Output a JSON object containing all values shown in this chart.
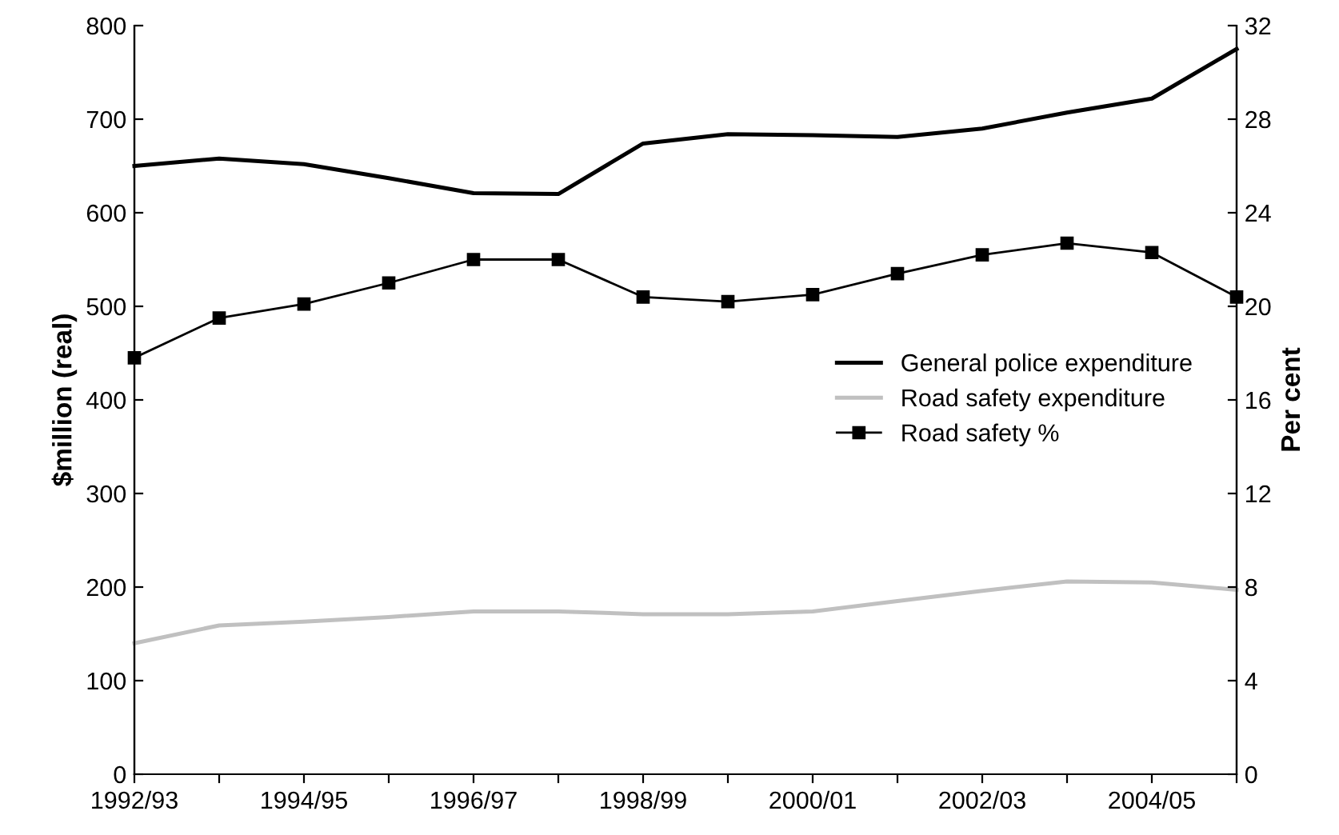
{
  "chart_data": {
    "type": "line",
    "ylabel": "$million (real)",
    "y2label": "Per cent",
    "categories": [
      "1992/93",
      null,
      "1994/95",
      null,
      "1996/97",
      null,
      "1998/99",
      null,
      "2000/01",
      null,
      "2002/03",
      null,
      "2004/05",
      null
    ],
    "series": [
      {
        "name": "General police expenditure",
        "color": "#000000",
        "marker": "none",
        "values": [
          650,
          658,
          652,
          637,
          621,
          620,
          674,
          684,
          683,
          681,
          690,
          707,
          722,
          775
        ]
      },
      {
        "name": "Road safety expenditure",
        "color": "#c0c0c0",
        "marker": "none",
        "values": [
          140,
          159,
          163,
          168,
          174,
          174,
          171,
          171,
          174,
          185,
          196,
          206,
          205,
          197
        ]
      },
      {
        "name": "Road safety %",
        "color": "#000000",
        "marker": "square",
        "axis": "y2",
        "values": [
          17.8,
          19.5,
          20.1,
          21.0,
          22.0,
          22.0,
          20.4,
          20.2,
          20.5,
          21.4,
          22.2,
          22.7,
          22.3,
          20.4
        ]
      }
    ],
    "ylim": [
      0,
      800
    ],
    "yticks": [
      0,
      100,
      200,
      300,
      400,
      500,
      600,
      700,
      800
    ],
    "y2lim": [
      0,
      32
    ],
    "y2ticks": [
      0,
      4,
      8,
      12,
      16,
      20,
      24,
      28,
      32
    ],
    "grid": false,
    "legend": "right"
  }
}
